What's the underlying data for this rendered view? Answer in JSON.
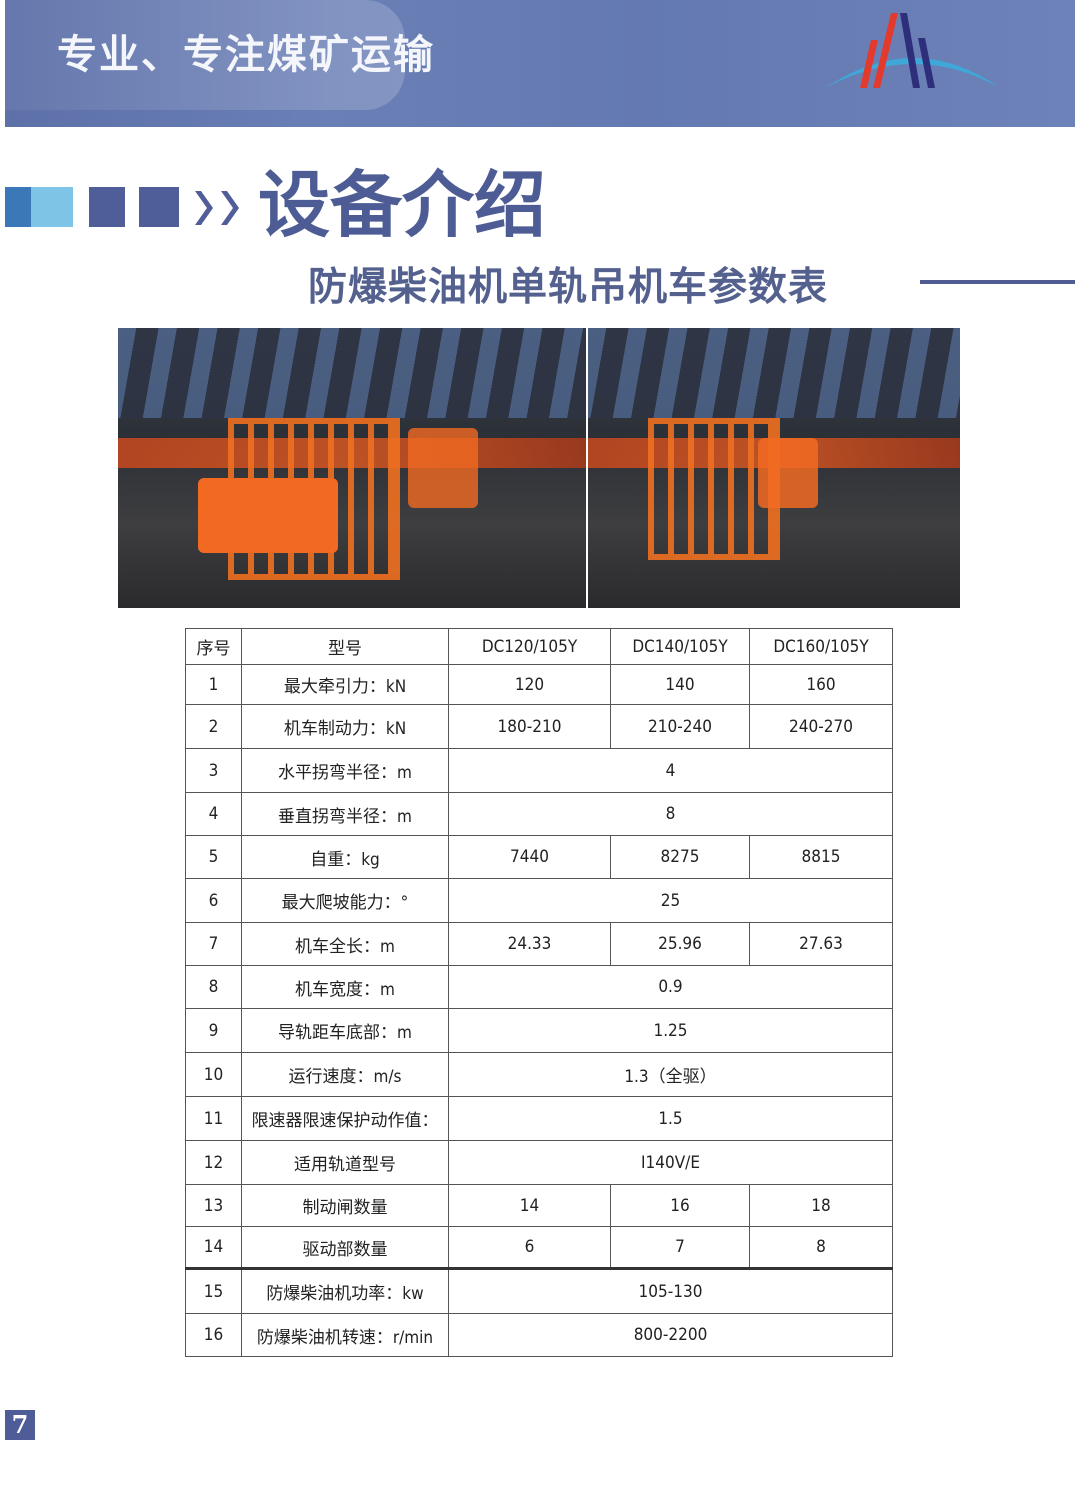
{
  "header": {
    "slogan": "专业、专注煤矿运输",
    "logo": "company-logo",
    "colors": {
      "banner": "#6479b1",
      "accent": "#4d5c94",
      "logo_red": "#e23b2e",
      "logo_navy": "#2e2f7a",
      "logo_cyan": "#3fa8d8"
    }
  },
  "section": {
    "title": "设备介绍",
    "subtitle": "防爆柴油机单轨吊机车参数表"
  },
  "photos": [
    "locomotive-photo-left",
    "locomotive-photo-right"
  ],
  "table": {
    "header": [
      "序号",
      "型号",
      "DC120/105Y",
      "DC140/105Y",
      "DC160/105Y"
    ],
    "rows": [
      {
        "no": "1",
        "param": "最大牵引力：kN",
        "values": [
          "120",
          "140",
          "160"
        ]
      },
      {
        "no": "2",
        "param": "机车制动力：kN",
        "values": [
          "180-210",
          "210-240",
          "240-270"
        ]
      },
      {
        "no": "3",
        "param": "水平拐弯半径：m",
        "values": [
          "4"
        ]
      },
      {
        "no": "4",
        "param": "垂直拐弯半径：m",
        "values": [
          "8"
        ]
      },
      {
        "no": "5",
        "param": "自重：kg",
        "values": [
          "7440",
          "8275",
          "8815"
        ]
      },
      {
        "no": "6",
        "param": "最大爬坡能力：°",
        "values": [
          "25"
        ]
      },
      {
        "no": "7",
        "param": "机车全长：m",
        "values": [
          "24.33",
          "25.96",
          "27.63"
        ]
      },
      {
        "no": "8",
        "param": "机车宽度：m",
        "values": [
          "0.9"
        ]
      },
      {
        "no": "9",
        "param": "导轨距车底部：m",
        "values": [
          "1.25"
        ]
      },
      {
        "no": "10",
        "param": "运行速度：m/s",
        "values": [
          "1.3（全驱）"
        ]
      },
      {
        "no": "11",
        "param": "限速器限速保护动作值：",
        "values": [
          "1.5"
        ]
      },
      {
        "no": "12",
        "param": "适用轨道型号",
        "values": [
          "I140V/E"
        ]
      },
      {
        "no": "13",
        "param": "制动闸数量",
        "values": [
          "14",
          "16",
          "18"
        ]
      },
      {
        "no": "14",
        "param": "驱动部数量",
        "values": [
          "6",
          "7",
          "8"
        ]
      },
      {
        "no": "15",
        "param": "防爆柴油机功率：kw",
        "values": [
          "105-130"
        ]
      },
      {
        "no": "16",
        "param": "防爆柴油机转速：r/min",
        "values": [
          "800-2200"
        ]
      }
    ]
  },
  "footer": {
    "page_number": "7"
  }
}
